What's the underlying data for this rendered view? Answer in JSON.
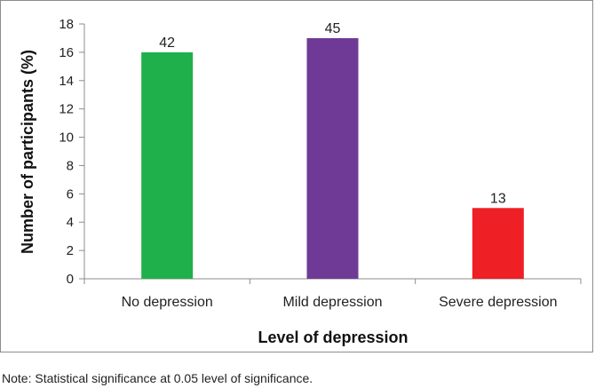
{
  "chart_data": {
    "type": "bar",
    "categories": [
      "No depression",
      "Mild depression",
      "Severe depression"
    ],
    "values": [
      16,
      17,
      5
    ],
    "data_labels": [
      "42",
      "45",
      "13"
    ],
    "colors": [
      "#1fb04c",
      "#6f3a96",
      "#ee1f25"
    ],
    "xlabel": "Level of depression",
    "ylabel": "Number of participants (%)",
    "ylim": [
      0,
      18
    ],
    "yticks": [
      0,
      2,
      4,
      6,
      8,
      10,
      12,
      14,
      16,
      18
    ],
    "grid": false,
    "legend": "none"
  },
  "note": "Note: Statistical significance at 0.05 level of significance."
}
